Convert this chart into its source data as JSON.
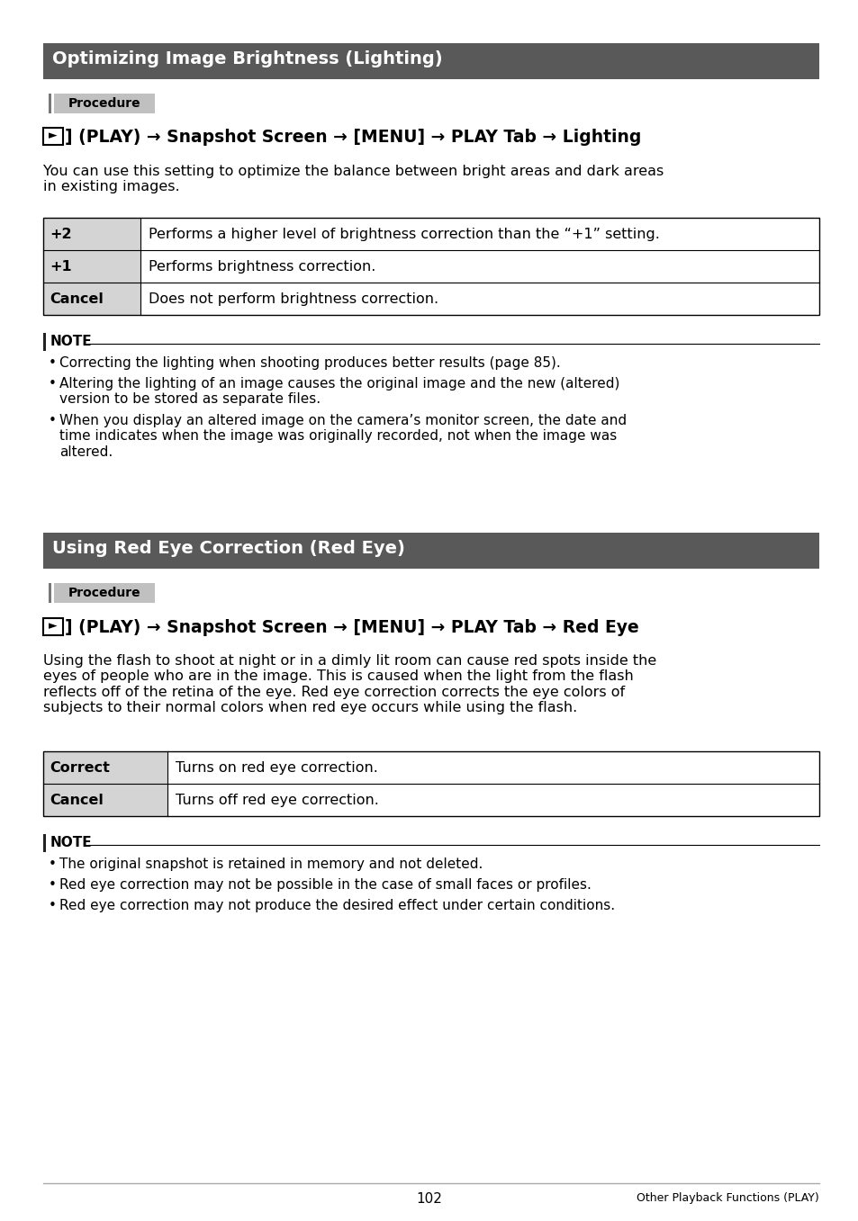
{
  "page_bg": "#ffffff",
  "header1_text": "Optimizing Image Brightness (Lighting)",
  "header1_bg": "#595959",
  "header1_color": "#ffffff",
  "header2_text": "Using Red Eye Correction (Red Eye)",
  "header2_bg": "#595959",
  "header2_color": "#ffffff",
  "procedure_bg": "#c0c0c0",
  "procedure_text": "Procedure",
  "nav1c": "] (PLAY) → Snapshot Screen → [MENU] → PLAY Tab → Lighting",
  "nav2c": "] (PLAY) → Snapshot Screen → [MENU] → PLAY Tab → Red Eye",
  "desc1": "You can use this setting to optimize the balance between bright areas and dark areas\nin existing images.",
  "table1": [
    [
      "+2",
      "Performs a higher level of brightness correction than the “+1” setting."
    ],
    [
      "+1",
      "Performs brightness correction."
    ],
    [
      "Cancel",
      "Does not perform brightness correction."
    ]
  ],
  "note1_bullets": [
    "Correcting the lighting when shooting produces better results (page 85).",
    "Altering the lighting of an image causes the original image and the new (altered)\nversion to be stored as separate files.",
    "When you display an altered image on the camera’s monitor screen, the date and\ntime indicates when the image was originally recorded, not when the image was\naltered."
  ],
  "desc2": "Using the flash to shoot at night or in a dimly lit room can cause red spots inside the\neyes of people who are in the image. This is caused when the light from the flash\nreflects off of the retina of the eye. Red eye correction corrects the eye colors of\nsubjects to their normal colors when red eye occurs while using the flash.",
  "table2": [
    [
      "Correct",
      "Turns on red eye correction."
    ],
    [
      "Cancel",
      "Turns off red eye correction."
    ]
  ],
  "note2_bullets": [
    "The original snapshot is retained in memory and not deleted.",
    "Red eye correction may not be possible in the case of small faces or profiles.",
    "Red eye correction may not produce the desired effect under certain conditions."
  ],
  "page_num": "102",
  "footer_right": "Other Playback Functions (PLAY)",
  "table_header_bg": "#d4d4d4",
  "table_border": "#000000",
  "note_bar_color": "#222222"
}
